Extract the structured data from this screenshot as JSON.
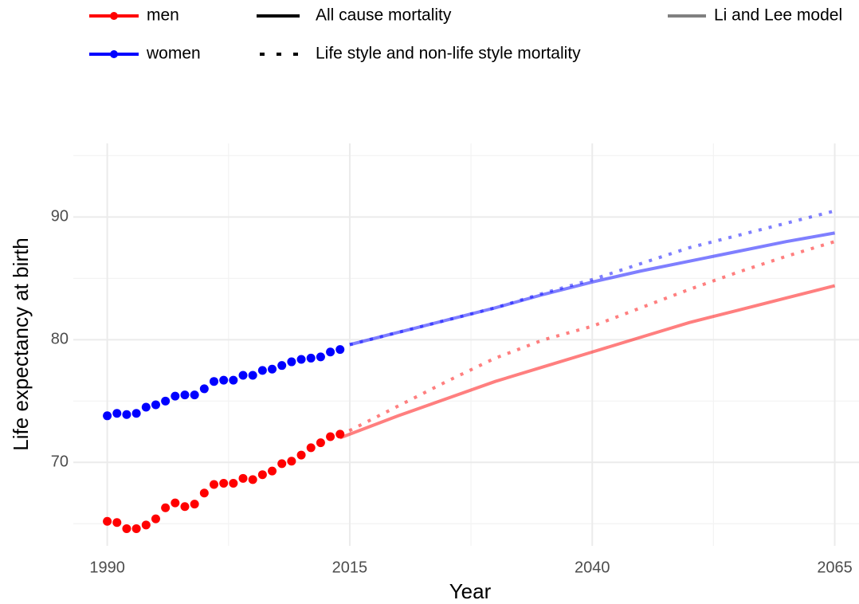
{
  "chart_data": {
    "type": "line",
    "x_label": "Year",
    "y_label": "Life expectancy at birth",
    "xlim": [
      1986.5,
      2067.5
    ],
    "ylim": [
      63.2,
      96
    ],
    "xticks": [
      1990,
      2015,
      2040,
      2065
    ],
    "yticks": [
      70,
      80,
      90
    ],
    "x_minor_ticks": [
      2002.5,
      2027.5,
      2052.5
    ],
    "y_minor_ticks": [
      65,
      75,
      85,
      95
    ],
    "grid": true,
    "sexes": [
      {
        "label": "men",
        "color": "#ff0000"
      },
      {
        "label": "women",
        "color": "#0000ff"
      }
    ],
    "mortality_types": [
      {
        "label": "All cause mortality",
        "dash": "solid"
      },
      {
        "label": "Life style and non-life style mortality",
        "dash": "dotted"
      }
    ],
    "model": {
      "label": "Li and Lee model",
      "color": "#808080",
      "opacity": 0.5
    },
    "series": [
      {
        "sex": 0,
        "kind": "points",
        "x": [
          1990,
          1991,
          1992,
          1993,
          1994,
          1995,
          1996,
          1997,
          1998,
          1999,
          2000,
          2001,
          2002,
          2003,
          2004,
          2005,
          2006,
          2007,
          2008,
          2009,
          2010,
          2011,
          2012,
          2013,
          2014
        ],
        "values": [
          65.2,
          65.1,
          64.6,
          64.6,
          64.9,
          65.4,
          66.3,
          66.7,
          66.4,
          66.6,
          67.5,
          68.2,
          68.3,
          68.3,
          68.7,
          68.6,
          69.0,
          69.3,
          69.9,
          70.1,
          70.6,
          71.2,
          71.6,
          72.1,
          72.3
        ]
      },
      {
        "sex": 1,
        "kind": "points",
        "x": [
          1990,
          1991,
          1992,
          1993,
          1994,
          1995,
          1996,
          1997,
          1998,
          1999,
          2000,
          2001,
          2002,
          2003,
          2004,
          2005,
          2006,
          2007,
          2008,
          2009,
          2010,
          2011,
          2012,
          2013,
          2014
        ],
        "values": [
          73.8,
          74.0,
          73.9,
          74.0,
          74.5,
          74.7,
          75.0,
          75.4,
          75.5,
          75.5,
          76.0,
          76.6,
          76.7,
          76.7,
          77.1,
          77.1,
          77.5,
          77.6,
          77.9,
          78.2,
          78.4,
          78.5,
          78.6,
          79.0,
          79.2
        ]
      },
      {
        "sex": 0,
        "kind": "line",
        "mortality": 0,
        "x": [
          2014,
          2015,
          2020,
          2025,
          2030,
          2035,
          2040,
          2045,
          2050,
          2055,
          2060,
          2065
        ],
        "values": [
          72.0,
          72.3,
          73.8,
          75.2,
          76.6,
          77.8,
          79.0,
          80.2,
          81.4,
          82.4,
          83.4,
          84.4
        ]
      },
      {
        "sex": 0,
        "kind": "line",
        "mortality": 1,
        "x": [
          2014,
          2020,
          2025,
          2030,
          2035,
          2040,
          2045,
          2050,
          2055,
          2060,
          2065
        ],
        "values": [
          72.2,
          74.6,
          76.6,
          78.5,
          80.0,
          81.1,
          82.6,
          84.1,
          85.5,
          86.8,
          88.0
        ]
      },
      {
        "sex": 1,
        "kind": "line",
        "mortality": 0,
        "x": [
          2015,
          2020,
          2025,
          2030,
          2035,
          2040,
          2045,
          2050,
          2055,
          2060,
          2065
        ],
        "values": [
          79.6,
          80.6,
          81.6,
          82.6,
          83.7,
          84.7,
          85.6,
          86.4,
          87.2,
          88.0,
          88.7
        ]
      },
      {
        "sex": 1,
        "kind": "line",
        "mortality": 1,
        "x": [
          2015,
          2020,
          2025,
          2030,
          2035,
          2040,
          2045,
          2050,
          2055,
          2060,
          2065
        ],
        "values": [
          79.6,
          80.6,
          81.6,
          82.6,
          83.8,
          84.9,
          86.2,
          87.5,
          88.5,
          89.5,
          90.5
        ]
      }
    ]
  }
}
